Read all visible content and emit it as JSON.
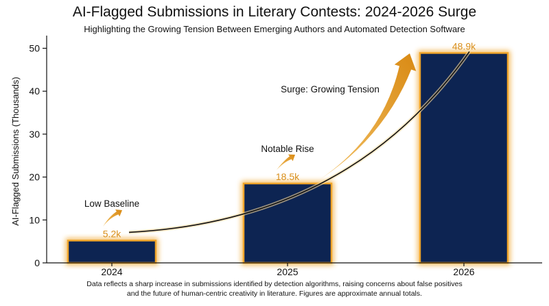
{
  "chart_data": {
    "type": "bar",
    "title": "AI-Flagged Submissions in Literary Contests: 2024-2026 Surge",
    "subtitle": "Highlighting the Growing Tension Between Emerging Authors and Automated Detection Software",
    "xlabel": "",
    "ylabel": "AI-Flagged Submissions (Thousands)",
    "categories": [
      "2024",
      "2025",
      "2026"
    ],
    "values": [
      5.2,
      18.5,
      48.9
    ],
    "data_labels": [
      "5.2k",
      "18.5k",
      "48.9k"
    ],
    "ylim": [
      0,
      52
    ],
    "yticks": [
      0,
      10,
      20,
      30,
      40,
      50
    ],
    "grid": false,
    "annotations": [
      {
        "text": "Low Baseline"
      },
      {
        "text": "Notable Rise"
      },
      {
        "text": "Surge: Growing Tension"
      }
    ],
    "footnote_lines": [
      "Data reflects a sharp increase in submissions identified by detection algorithms, raising concerns about false positives",
      "and the future of human-centric creativity in literature. Figures are approximate annual totals."
    ],
    "colors": {
      "bar_fill": "#0d2452",
      "bar_glow": "#f0a52a",
      "label": "#d98f1c",
      "arrow": "#e39a20",
      "trend_line": "#111111",
      "axis": "#111111"
    }
  }
}
